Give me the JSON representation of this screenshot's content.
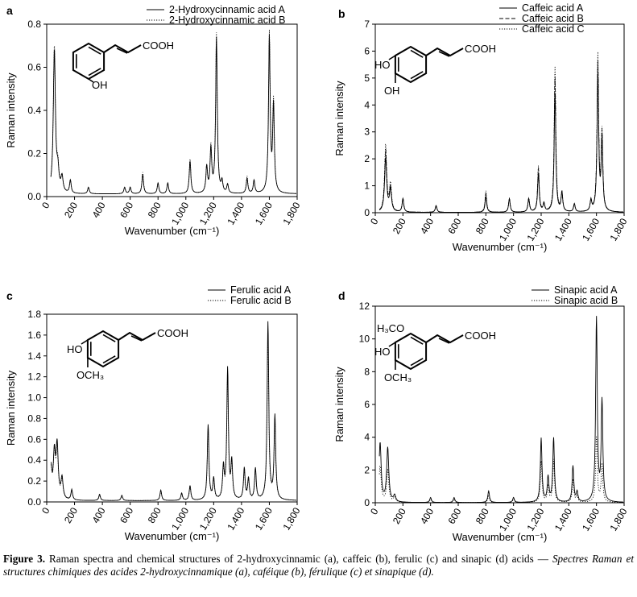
{
  "chart_data": [
    {
      "panel": "a",
      "type": "line",
      "xlabel": "Wavenumber (cm⁻¹)",
      "ylabel": "Raman intensity",
      "xlim": [
        0,
        1800
      ],
      "ylim": [
        0,
        0.8
      ],
      "xticks": [
        "0",
        "200",
        "400",
        "600",
        "800",
        "1,000",
        "1,200",
        "1,400",
        "1,600",
        "1,800"
      ],
      "yticks": [
        "0.0",
        "0.2",
        "0.4",
        "0.6",
        "0.8"
      ],
      "legend_position": "top-right",
      "structure": {
        "groups": [
          "COOH",
          "OH"
        ]
      },
      "series": [
        {
          "name": "2-Hydroxycinnamic acid A",
          "style": "solid",
          "peaks": [
            [
              55,
              0.66
            ],
            [
              80,
              0.09
            ],
            [
              110,
              0.07
            ],
            [
              170,
              0.06
            ],
            [
              300,
              0.03
            ],
            [
              560,
              0.03
            ],
            [
              600,
              0.03
            ],
            [
              690,
              0.09
            ],
            [
              800,
              0.05
            ],
            [
              870,
              0.05
            ],
            [
              1030,
              0.15
            ],
            [
              1150,
              0.12
            ],
            [
              1180,
              0.2
            ],
            [
              1220,
              0.72
            ],
            [
              1260,
              0.05
            ],
            [
              1300,
              0.04
            ],
            [
              1440,
              0.07
            ],
            [
              1490,
              0.06
            ],
            [
              1600,
              0.72
            ],
            [
              1630,
              0.4
            ]
          ]
        },
        {
          "name": "2-Hydroxycinnamic acid B",
          "style": "dotted",
          "peaks": [
            [
              55,
              0.68
            ],
            [
              80,
              0.1
            ],
            [
              110,
              0.07
            ],
            [
              170,
              0.06
            ],
            [
              300,
              0.03
            ],
            [
              560,
              0.03
            ],
            [
              600,
              0.03
            ],
            [
              690,
              0.1
            ],
            [
              800,
              0.05
            ],
            [
              870,
              0.05
            ],
            [
              1030,
              0.16
            ],
            [
              1150,
              0.12
            ],
            [
              1180,
              0.21
            ],
            [
              1220,
              0.74
            ],
            [
              1260,
              0.05
            ],
            [
              1300,
              0.04
            ],
            [
              1440,
              0.08
            ],
            [
              1490,
              0.06
            ],
            [
              1600,
              0.74
            ],
            [
              1630,
              0.42
            ]
          ]
        }
      ]
    },
    {
      "panel": "b",
      "type": "line",
      "xlabel": "Wavenumber (cm⁻¹)",
      "ylabel": "Raman intensity",
      "xlim": [
        0,
        1800
      ],
      "ylim": [
        0,
        7
      ],
      "xticks": [
        "0",
        "200",
        "400",
        "600",
        "800",
        "1,000",
        "1,200",
        "1,400",
        "1,600",
        "1,800"
      ],
      "yticks": [
        "0",
        "1",
        "2",
        "3",
        "4",
        "5",
        "6",
        "7"
      ],
      "legend_position": "top-right",
      "structure": {
        "groups": [
          "COOH",
          "HO",
          "OH"
        ]
      },
      "series": [
        {
          "name": "Caffeic acid A",
          "style": "solid",
          "peaks": [
            [
              75,
              2.0
            ],
            [
              110,
              0.8
            ],
            [
              200,
              0.5
            ],
            [
              440,
              0.25
            ],
            [
              800,
              0.6
            ],
            [
              970,
              0.5
            ],
            [
              1110,
              0.5
            ],
            [
              1180,
              1.4
            ],
            [
              1220,
              0.3
            ],
            [
              1300,
              4.4
            ],
            [
              1350,
              0.7
            ],
            [
              1440,
              0.3
            ],
            [
              1560,
              0.4
            ],
            [
              1610,
              5.1
            ],
            [
              1640,
              2.6
            ]
          ]
        },
        {
          "name": "Caffeic acid B",
          "style": "dashed",
          "peaks": [
            [
              75,
              2.3
            ],
            [
              110,
              0.9
            ],
            [
              200,
              0.5
            ],
            [
              440,
              0.25
            ],
            [
              800,
              0.7
            ],
            [
              970,
              0.5
            ],
            [
              1110,
              0.5
            ],
            [
              1180,
              1.6
            ],
            [
              1220,
              0.3
            ],
            [
              1300,
              5.0
            ],
            [
              1350,
              0.7
            ],
            [
              1440,
              0.3
            ],
            [
              1560,
              0.4
            ],
            [
              1610,
              5.5
            ],
            [
              1640,
              2.8
            ]
          ]
        },
        {
          "name": "Caffeic acid C",
          "style": "dotted",
          "peaks": [
            [
              75,
              2.5
            ],
            [
              110,
              1.0
            ],
            [
              200,
              0.5
            ],
            [
              440,
              0.25
            ],
            [
              800,
              0.8
            ],
            [
              970,
              0.5
            ],
            [
              1110,
              0.5
            ],
            [
              1180,
              1.7
            ],
            [
              1220,
              0.3
            ],
            [
              1300,
              5.4
            ],
            [
              1350,
              0.7
            ],
            [
              1440,
              0.3
            ],
            [
              1560,
              0.4
            ],
            [
              1610,
              5.8
            ],
            [
              1640,
              2.9
            ]
          ]
        }
      ]
    },
    {
      "panel": "c",
      "type": "line",
      "xlabel": "Wavenumber (cm⁻¹)",
      "ylabel": "Raman intensity",
      "xlim": [
        0,
        1800
      ],
      "ylim": [
        0,
        1.8
      ],
      "xticks": [
        "0",
        "200",
        "400",
        "600",
        "800",
        "1,000",
        "1,200",
        "1,400",
        "1,600",
        "1,800"
      ],
      "yticks": [
        "0.0",
        "0.2",
        "0.4",
        "0.6",
        "0.8",
        "1.0",
        "1.2",
        "1.4",
        "1.6",
        "1.8"
      ],
      "legend_position": "top-right",
      "structure": {
        "groups": [
          "COOH",
          "HO",
          "OCH3"
        ]
      },
      "series": [
        {
          "name": "Ferulic acid A",
          "style": "solid",
          "peaks": [
            [
              30,
              0.3
            ],
            [
              55,
              0.42
            ],
            [
              75,
              0.5
            ],
            [
              110,
              0.2
            ],
            [
              180,
              0.1
            ],
            [
              380,
              0.06
            ],
            [
              540,
              0.05
            ],
            [
              820,
              0.1
            ],
            [
              970,
              0.07
            ],
            [
              1030,
              0.14
            ],
            [
              1160,
              0.72
            ],
            [
              1200,
              0.2
            ],
            [
              1270,
              0.3
            ],
            [
              1300,
              1.25
            ],
            [
              1330,
              0.35
            ],
            [
              1420,
              0.3
            ],
            [
              1450,
              0.2
            ],
            [
              1500,
              0.3
            ],
            [
              1590,
              1.7
            ],
            [
              1640,
              0.8
            ]
          ]
        },
        {
          "name": "Ferulic acid B",
          "style": "dotted",
          "peaks": [
            [
              30,
              0.28
            ],
            [
              55,
              0.4
            ],
            [
              75,
              0.47
            ],
            [
              110,
              0.18
            ],
            [
              180,
              0.09
            ],
            [
              380,
              0.05
            ],
            [
              540,
              0.05
            ],
            [
              820,
              0.09
            ],
            [
              970,
              0.06
            ],
            [
              1030,
              0.13
            ],
            [
              1160,
              0.68
            ],
            [
              1200,
              0.18
            ],
            [
              1270,
              0.28
            ],
            [
              1300,
              1.18
            ],
            [
              1330,
              0.33
            ],
            [
              1420,
              0.28
            ],
            [
              1450,
              0.18
            ],
            [
              1500,
              0.28
            ],
            [
              1590,
              1.6
            ],
            [
              1640,
              0.76
            ]
          ]
        }
      ]
    },
    {
      "panel": "d",
      "type": "line",
      "xlabel": "Wavenumber (cm⁻¹)",
      "ylabel": "Raman intensity",
      "xlim": [
        0,
        1800
      ],
      "ylim": [
        0,
        12
      ],
      "xticks": [
        "0",
        "200",
        "400",
        "600",
        "800",
        "1,000",
        "1,200",
        "1,400",
        "1,600",
        "1,800"
      ],
      "yticks": [
        "0",
        "2",
        "4",
        "6",
        "8",
        "10",
        "12"
      ],
      "legend_position": "top-right",
      "structure": {
        "groups": [
          "H3CO",
          "COOH",
          "HO",
          "OCH3"
        ]
      },
      "series": [
        {
          "name": "Sinapic acid A",
          "style": "solid",
          "peaks": [
            [
              35,
              3.6
            ],
            [
              90,
              3.3
            ],
            [
              140,
              0.4
            ],
            [
              400,
              0.3
            ],
            [
              570,
              0.3
            ],
            [
              820,
              0.7
            ],
            [
              1000,
              0.3
            ],
            [
              1200,
              3.9
            ],
            [
              1250,
              1.5
            ],
            [
              1290,
              3.9
            ],
            [
              1430,
              2.2
            ],
            [
              1460,
              0.6
            ],
            [
              1600,
              11.2
            ],
            [
              1640,
              6.1
            ]
          ]
        },
        {
          "name": "Sinapic acid B",
          "style": "dotted",
          "peaks": [
            [
              35,
              2.2
            ],
            [
              90,
              2.0
            ],
            [
              140,
              0.3
            ],
            [
              400,
              0.2
            ],
            [
              570,
              0.2
            ],
            [
              820,
              0.4
            ],
            [
              1000,
              0.2
            ],
            [
              1200,
              2.5
            ],
            [
              1250,
              1.0
            ],
            [
              1290,
              2.6
            ],
            [
              1430,
              1.4
            ],
            [
              1460,
              0.4
            ],
            [
              1600,
              4.0
            ],
            [
              1640,
              2.3
            ]
          ]
        }
      ]
    }
  ],
  "caption": {
    "label": "Figure 3.",
    "english": " Raman spectra and chemical structures of 2-hydroxycinnamic (a), caffeic (b), ferulic (c) and sinapic (d) acids — ",
    "french": "Spectres Raman et structures chimiques des acides 2-hydroxycinnamique (a), caféique (b), férulique (c) et sinapique (d)."
  }
}
